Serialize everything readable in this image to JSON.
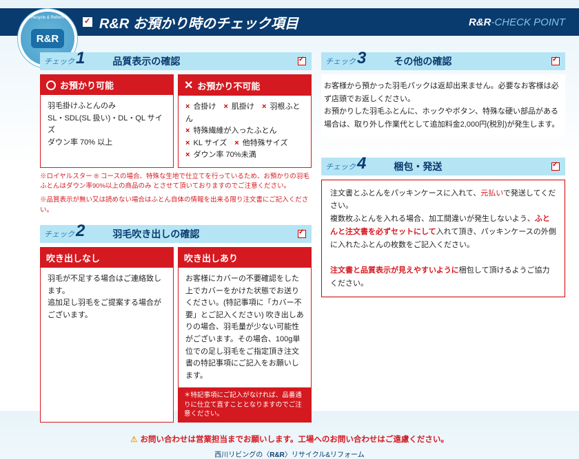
{
  "logo": {
    "text": "R&R",
    "arc": "Recycle & Reform"
  },
  "header": {
    "title": "R&R お預かり時のチェック項目",
    "right_prefix": "R&R",
    "right_suffix": "-CHECK POINT"
  },
  "s1": {
    "check": "チェック",
    "num": "1",
    "title": "品質表示の確認",
    "ok_head": "お預かり可能",
    "ok_body": "羽毛掛けふとんのみ\nSL・SDL(SL 扱い)・DL・QL サイズ\nダウン率 70% 以上",
    "ng_head": "お預かり不可能",
    "ng_items": [
      "合掛け",
      "肌掛け",
      "羽根ふとん",
      "特殊繊維が入ったふとん",
      "KL サイズ",
      "他特殊サイズ",
      "ダウン率 70%未満"
    ],
    "note1": "※ロイヤルスター ® コースの場合、特殊な生地で仕立てを行っているため、お預かりの羽毛ふとんはダウン率90%以上の商品のみ とさせて頂いておりますのでご注意ください。",
    "note2": "※品質表示が無い又は読めない場合はふとん自体の情報を出来る限り注文書にご記入ください。"
  },
  "s2": {
    "check": "チェック",
    "num": "2",
    "title": "羽毛吹き出しの確認",
    "no_head": "吹き出しなし",
    "no_body": "羽毛が不足する場合はご連絡致します。\n追加足し羽毛をご提案する場合がございます。",
    "yes_head": "吹き出しあり",
    "yes_body": "お客様にカバーの不要確認をした上でカバーをかけた状態でお送りください。(特記事項に「カバー不要」とご記入ください) 吹き出しありの場合、羽毛量が少ない可能性がございます。その場合、100g単位での足し羽毛をご指定頂き注文書の特記事項にご記入をお願いします。",
    "footer": "＊特記事項にご記入がなければ、品番通りに仕立て直すこととなりますのでご注意ください。"
  },
  "s3": {
    "check": "チェック",
    "num": "3",
    "title": "その他の確認",
    "body_1": "お客様から預かった羽毛パックは返却出来ません。必要なお客様は必ず店頭でお返しください。",
    "body_2a": "お預かりした羽毛ふとんに、ホックやボタン、特殊な硬い部品がある場合は、取り外し作業代として",
    "body_2b": "追加料金2,000円(税別)",
    "body_2c": "が発生します。"
  },
  "s4": {
    "check": "チェック",
    "num": "4",
    "title": "梱包・発送",
    "body_1a": "注文書とふとんをパッキンケースに入れて、",
    "body_1b": "元払い",
    "body_1c": "で発送してください。",
    "body_2a": "複数枚ふとんを入れる場合、加工間違いが発生しないよう、",
    "body_2b": "ふとんと注文書を必ずセットにして",
    "body_2c": "入れて頂き、パッキンケースの外側に入れたふとんの枚数をご記入ください。",
    "body_3a": "注文書と品質表示が見えやすいように",
    "body_3b": "梱包して頂けるようご協力ください。"
  },
  "footer": {
    "warn": "お問い合わせは営業担当までお願いします。工場へのお問い合わせはご遠慮ください。",
    "credit_1": "西川リビングの〈",
    "credit_2": "R&R",
    "credit_3": "〉リサイクル&リフォーム"
  }
}
